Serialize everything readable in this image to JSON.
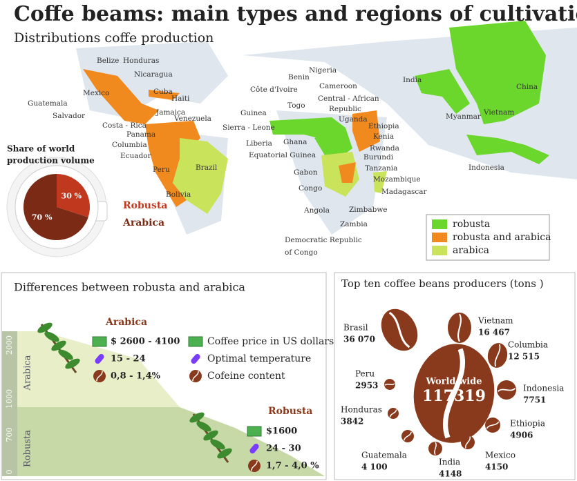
{
  "header": {
    "title": "Coffe beams: main types and regions of cultivation",
    "subtitle": "Distributions coffe production"
  },
  "chart_data": {
    "type": "pie",
    "title_lines": [
      "Share of world",
      "production volume"
    ],
    "categories": [
      "Robusta",
      "Arabica"
    ],
    "values": [
      30,
      70
    ],
    "value_labels": [
      "30 %",
      "70 %"
    ],
    "colors": [
      "#c0391f",
      "#7b2a16"
    ]
  },
  "map": {
    "labels": [
      "Belize",
      "Honduras",
      "Nicaragua",
      "Cuba",
      "Haiti",
      "Mexico",
      "Guatemala",
      "Jamaica",
      "Venezuela",
      "Salvador",
      "Costa - Rica",
      "Panama",
      "Columbia",
      "Ecuador",
      "Brazil",
      "Peru",
      "Bolivia",
      "Benin",
      "Nigeria",
      "Côte d'Ivoire",
      "Cameroon",
      "Togo",
      "Central - African",
      "Republic",
      "Guinea",
      "Uganda",
      "Ethiopia",
      "Sierra - Leone",
      "Ghana",
      "Liberia",
      "Kenia",
      "Equatorial Guinea",
      "Rwanda",
      "Burundi",
      "Gabon",
      "Tanzania",
      "Mozambique",
      "Congo",
      "Madagascar",
      "Angola",
      "Zimbabwe",
      "Zambia",
      "Democratic Republic",
      "of Congo",
      "India",
      "China",
      "Myanmar",
      "Vietnam",
      "Indonesia"
    ],
    "legend": [
      {
        "name": "robusta",
        "color": "#6bd62b"
      },
      {
        "name": "robusta and arabica",
        "color": "#f08a1e"
      },
      {
        "name": "arabica",
        "color": "#c9e35a"
      }
    ]
  },
  "differences": {
    "title": "Differences between robusta and arabica",
    "axis_labels": [
      "2000",
      "1000",
      "700",
      "0"
    ],
    "zone_labels": [
      "Arabica",
      "Robusta"
    ],
    "arabica": {
      "name": "Arabica",
      "price": "$ 2600 - 4100",
      "temperature": "15 - 24",
      "caffeine": "0,8 - 1,4%"
    },
    "robusta": {
      "name": "Robusta",
      "price": "$1600",
      "temperature": "24 - 30",
      "caffeine": "1,7 - 4,0 %"
    },
    "legend": [
      "Coffee price in US dollars",
      "Optimal temperature",
      "Cofeine content"
    ]
  },
  "producers": {
    "title": "Top ten coffee beans producers (tons )",
    "total_label": "World wide",
    "total": "117319",
    "items": [
      {
        "name": "Brasil",
        "value": "36 070"
      },
      {
        "name": "Vietnam",
        "value": "16 467"
      },
      {
        "name": "Columbia",
        "value": "12 515"
      },
      {
        "name": "Indonesia",
        "value": "7751"
      },
      {
        "name": "Ethiopia",
        "value": "4906"
      },
      {
        "name": "Mexico",
        "value": "4150"
      },
      {
        "name": "India",
        "value": "4148"
      },
      {
        "name": "Guatemala",
        "value": "4 100"
      },
      {
        "name": "Honduras",
        "value": "3842"
      },
      {
        "name": "Peru",
        "value": "2953"
      }
    ]
  }
}
